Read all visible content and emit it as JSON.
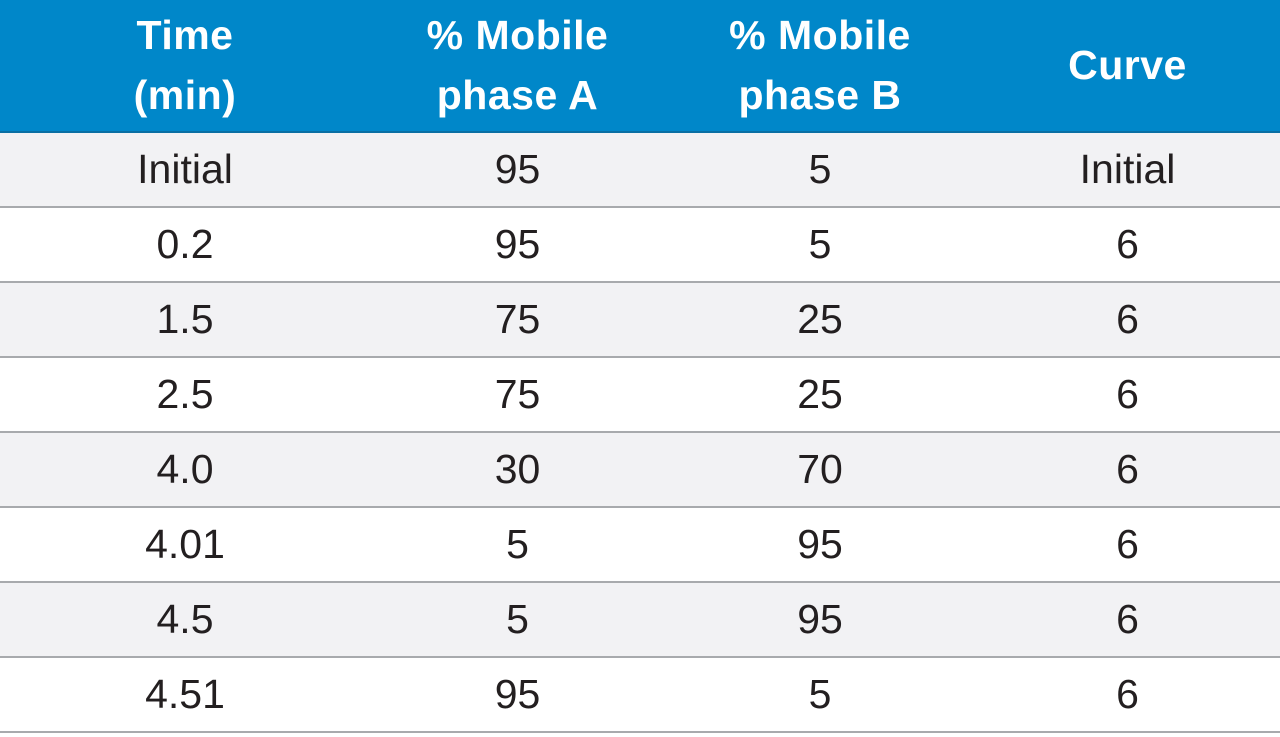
{
  "table": {
    "headers": [
      "Time\n(min)",
      "% Mobile\nphase A",
      "% Mobile\nphase B",
      "Curve"
    ],
    "rows": [
      [
        "Initial",
        "95",
        "5",
        "Initial"
      ],
      [
        "0.2",
        "95",
        "5",
        "6"
      ],
      [
        "1.5",
        "75",
        "25",
        "6"
      ],
      [
        "2.5",
        "75",
        "25",
        "6"
      ],
      [
        "4.0",
        "30",
        "70",
        "6"
      ],
      [
        "4.01",
        "5",
        "95",
        "6"
      ],
      [
        "4.5",
        "5",
        "95",
        "6"
      ],
      [
        "4.51",
        "95",
        "5",
        "6"
      ]
    ]
  },
  "colors": {
    "header_background": "#0087c9",
    "header_text": "#ffffff",
    "row_alt_background": "#f2f2f4",
    "row_background": "#ffffff",
    "divider": "#a8aaad",
    "cell_text": "#231f20"
  }
}
